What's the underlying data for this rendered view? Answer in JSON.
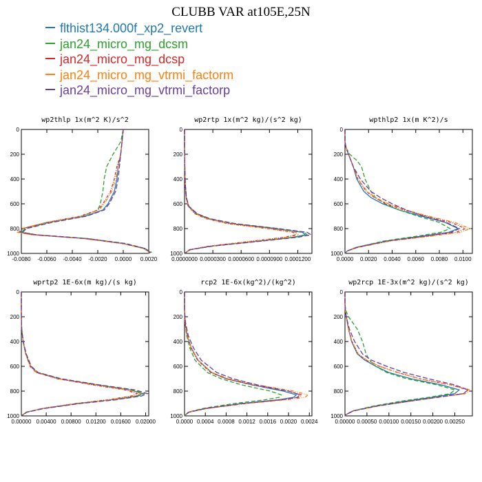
{
  "title": "CLUBB VAR at105E,25N",
  "legend": [
    {
      "label": "flthist134.000f_xp2_revert",
      "color": "#1f77b4"
    },
    {
      "label": "jan24_micro_mg_dcsm",
      "color": "#2ca02c"
    },
    {
      "label": "jan24_micro_mg_dcsp",
      "color": "#d62728"
    },
    {
      "label": "jan24_micro_mg_vtrmi_factorm",
      "color": "#ff7f0e"
    },
    {
      "label": "jan24_micro_mg_vtrmi_factorp",
      "color": "#6a3d9a"
    }
  ],
  "chart_data": [
    {
      "type": "line",
      "title": "wp2thlp  1x(m^2 K)/s^2",
      "y_ticks": [
        "0",
        "200",
        "400",
        "600",
        "800",
        "1000"
      ],
      "ylim": [
        1000,
        0
      ],
      "xlim": [
        -0.008,
        0.002
      ],
      "x_ticks": [
        "-0.0080",
        "-0.0060",
        "-0.0040",
        "-0.0020",
        "0.0000",
        "0.0020"
      ],
      "y": [
        0,
        100,
        200,
        300,
        400,
        500,
        600,
        650,
        700,
        750,
        800,
        830,
        850,
        880,
        920,
        960,
        990,
        1000
      ],
      "series": [
        {
          "values": [
            0,
            -0.0001,
            -0.0002,
            -0.0004,
            -0.0005,
            -0.0007,
            -0.0012,
            -0.0016,
            -0.003,
            -0.006,
            -0.0079,
            -0.0081,
            -0.007,
            -0.003,
            0.0,
            0.0016,
            0.0021,
            0.0019
          ]
        },
        {
          "values": [
            0,
            -0.0002,
            -0.0008,
            -0.0013,
            -0.0015,
            -0.0016,
            -0.0018,
            -0.002,
            -0.0032,
            -0.0058,
            -0.0077,
            -0.008,
            -0.0068,
            -0.0028,
            0.0002,
            0.0017,
            0.0022,
            0.002
          ]
        },
        {
          "values": [
            0,
            -0.0001,
            -0.0002,
            -0.0005,
            -0.0007,
            -0.001,
            -0.0016,
            -0.002,
            -0.0034,
            -0.006,
            -0.0079,
            -0.0082,
            -0.0071,
            -0.0031,
            -0.0001,
            0.0016,
            0.0021,
            0.0019
          ]
        },
        {
          "values": [
            0,
            -0.0001,
            -0.0002,
            -0.0004,
            -0.0006,
            -0.0009,
            -0.0015,
            -0.0019,
            -0.0033,
            -0.006,
            -0.008,
            -0.0083,
            -0.0072,
            -0.0032,
            -0.0001,
            0.0016,
            0.0021,
            0.0019
          ]
        },
        {
          "values": [
            0,
            -0.0001,
            -0.0002,
            -0.0003,
            -0.0004,
            -0.0006,
            -0.0011,
            -0.0015,
            -0.0029,
            -0.0056,
            -0.0076,
            -0.0079,
            -0.0068,
            -0.0029,
            0.0001,
            0.0017,
            0.0021,
            0.0019
          ]
        }
      ]
    },
    {
      "type": "line",
      "title": "wp2rtp  1x(m^2 kg)/(s^2 kg)",
      "y_ticks": [
        "0",
        "200",
        "400",
        "600",
        "800",
        "1000"
      ],
      "ylim": [
        1000,
        0
      ],
      "xlim": [
        0,
        0.000135
      ],
      "x_ticks": [
        "0.0000000",
        "0.0000300",
        "0.0000600",
        "0.0000900",
        "0.0001200"
      ],
      "x_tick_values": [
        0,
        3e-05,
        6e-05,
        9e-05,
        0.00012
      ],
      "y": [
        0,
        150,
        300,
        450,
        550,
        620,
        680,
        720,
        760,
        800,
        830,
        850,
        870,
        900,
        940,
        970,
        1000
      ],
      "series": [
        {
          "values": [
            0,
            0,
            3e-07,
            8e-07,
            1.8e-06,
            4e-06,
            1.2e-05,
            2.5e-05,
            5e-05,
            9.5e-05,
            0.000125,
            0.000128,
            0.000115,
            8e-05,
            3e-05,
            6e-06,
            0
          ]
        },
        {
          "values": [
            0,
            0,
            3e-07,
            9e-07,
            2e-06,
            4.5e-06,
            1.3e-05,
            2.6e-05,
            5.2e-05,
            9.8e-05,
            0.000127,
            0.00013,
            0.000117,
            8.1e-05,
            3e-05,
            6e-06,
            0
          ]
        },
        {
          "values": [
            0,
            0,
            2e-07,
            7e-07,
            1.6e-06,
            3.8e-06,
            1.1e-05,
            2.3e-05,
            4.6e-05,
            8.8e-05,
            0.000115,
            0.000118,
            0.000106,
            7.3e-05,
            2.7e-05,
            5e-06,
            0
          ]
        },
        {
          "values": [
            0,
            0,
            2e-07,
            7e-07,
            1.7e-06,
            3.9e-06,
            1.15e-05,
            2.4e-05,
            4.8e-05,
            9e-05,
            0.000118,
            0.000121,
            0.000109,
            7.5e-05,
            2.8e-05,
            5e-06,
            0
          ]
        },
        {
          "values": [
            0,
            0,
            3e-07,
            9e-07,
            2e-06,
            4.6e-06,
            1.35e-05,
            2.7e-05,
            5.4e-05,
            0.0001,
            0.00013,
            0.000134,
            0.00012,
            8.3e-05,
            3.1e-05,
            6e-06,
            0
          ]
        }
      ]
    },
    {
      "type": "line",
      "title": "wpthlp2  1x(m K^2)/s",
      "y_ticks": [
        "0",
        "200",
        "400",
        "600",
        "800",
        "1000"
      ],
      "ylim": [
        1000,
        0
      ],
      "xlim": [
        0,
        0.0108
      ],
      "x_ticks": [
        "0.0000",
        "0.0020",
        "0.0040",
        "0.0060",
        "0.0080",
        "0.0100"
      ],
      "y": [
        0,
        100,
        150,
        200,
        250,
        300,
        400,
        500,
        550,
        600,
        650,
        700,
        750,
        800,
        830,
        860,
        900,
        950,
        980,
        1000
      ],
      "series": [
        {
          "values": [
            0,
            0,
            0.0001,
            0.0003,
            0.0005,
            0.0007,
            0.001,
            0.0016,
            0.0022,
            0.0032,
            0.0046,
            0.0065,
            0.0085,
            0.0096,
            0.0088,
            0.0066,
            0.0035,
            0.001,
            0.0002,
            0
          ]
        },
        {
          "values": [
            0,
            0,
            0.0001,
            0.0004,
            0.001,
            0.0014,
            0.0017,
            0.0022,
            0.0026,
            0.0034,
            0.0046,
            0.0062,
            0.008,
            0.0089,
            0.0081,
            0.0062,
            0.0033,
            0.001,
            0.0002,
            0
          ]
        },
        {
          "values": [
            0,
            0,
            0.0001,
            0.0003,
            0.0005,
            0.0007,
            0.0011,
            0.0018,
            0.0025,
            0.0035,
            0.005,
            0.0069,
            0.009,
            0.0102,
            0.0094,
            0.0071,
            0.0037,
            0.0011,
            0.0002,
            0
          ]
        },
        {
          "values": [
            0,
            0,
            0.0001,
            0.0003,
            0.0005,
            0.0007,
            0.0011,
            0.0019,
            0.0026,
            0.0037,
            0.0052,
            0.0071,
            0.0093,
            0.0106,
            0.0098,
            0.0074,
            0.0039,
            0.0012,
            0.0002,
            0
          ]
        },
        {
          "values": [
            0,
            0,
            0.0001,
            0.0003,
            0.0005,
            0.0007,
            0.0013,
            0.0022,
            0.003,
            0.004,
            0.0052,
            0.0067,
            0.0086,
            0.0097,
            0.009,
            0.0068,
            0.0036,
            0.0011,
            0.0002,
            0
          ]
        }
      ]
    },
    {
      "type": "line",
      "title": "wprtp2  1E-6x(m kg)/(s kg)",
      "y_ticks": [
        "0",
        "200",
        "400",
        "600",
        "800",
        "1000"
      ],
      "ylim": [
        1000,
        0
      ],
      "xlim": [
        0,
        0.0205
      ],
      "x_ticks": [
        "0.00000",
        "0.00400",
        "0.00800",
        "0.01200",
        "0.01600",
        "0.02000"
      ],
      "y": [
        0,
        200,
        300,
        400,
        500,
        600,
        650,
        700,
        750,
        790,
        820,
        840,
        870,
        900,
        940,
        970,
        1000
      ],
      "series": [
        {
          "values": [
            0,
            0,
            5e-05,
            0.0003,
            0.0007,
            0.0015,
            0.0025,
            0.006,
            0.012,
            0.0175,
            0.0195,
            0.0185,
            0.0145,
            0.009,
            0.0035,
            0.0008,
            0
          ]
        },
        {
          "values": [
            0,
            0,
            5e-05,
            0.0003,
            0.0007,
            0.0015,
            0.0026,
            0.0062,
            0.0123,
            0.0178,
            0.0198,
            0.0188,
            0.0148,
            0.0092,
            0.0036,
            0.0008,
            0
          ]
        },
        {
          "values": [
            0,
            0,
            5e-05,
            0.0003,
            0.0007,
            0.0014,
            0.0024,
            0.0058,
            0.0115,
            0.0167,
            0.0186,
            0.0177,
            0.0139,
            0.0087,
            0.0034,
            0.0008,
            0
          ]
        },
        {
          "values": [
            0,
            0,
            5e-05,
            0.0003,
            0.0007,
            0.0015,
            0.0025,
            0.006,
            0.0118,
            0.0172,
            0.0192,
            0.0182,
            0.0143,
            0.0089,
            0.0035,
            0.0008,
            0
          ]
        },
        {
          "values": [
            0,
            0,
            5e-05,
            0.0003,
            0.0008,
            0.0016,
            0.0027,
            0.0064,
            0.0126,
            0.0183,
            0.0203,
            0.0193,
            0.0152,
            0.0095,
            0.0037,
            0.0009,
            0
          ]
        }
      ]
    },
    {
      "type": "line",
      "title": "rcp2  1E-6x(kg^2)/(kg^2)",
      "y_ticks": [
        "0",
        "200",
        "400",
        "600",
        "800",
        "1000"
      ],
      "ylim": [
        1000,
        0
      ],
      "xlim": [
        0,
        0.00245
      ],
      "x_ticks": [
        "0.0000",
        "0.0004",
        "0.0008",
        "0.0012",
        "0.0016",
        "0.0020",
        "0.0024"
      ],
      "y": [
        0,
        150,
        250,
        350,
        450,
        550,
        650,
        700,
        750,
        800,
        830,
        850,
        870,
        900,
        940,
        970,
        1000
      ],
      "series": [
        {
          "values": [
            0,
            0,
            1e-05,
            5e-05,
            0.00013,
            0.00026,
            0.00052,
            0.0008,
            0.0013,
            0.0019,
            0.00215,
            0.0021,
            0.0018,
            0.0011,
            0.0004,
            8e-05,
            0
          ]
        },
        {
          "values": [
            0,
            0,
            1e-05,
            4e-05,
            0.0001,
            0.0002,
            0.00044,
            0.0007,
            0.0011,
            0.00165,
            0.00186,
            0.00182,
            0.00155,
            0.00095,
            0.00035,
            7e-05,
            0
          ]
        },
        {
          "values": [
            0,
            0,
            1e-05,
            5e-05,
            0.00012,
            0.00025,
            0.0005,
            0.0008,
            0.0013,
            0.002,
            0.00225,
            0.0022,
            0.00188,
            0.00115,
            0.00042,
            8e-05,
            0
          ]
        },
        {
          "values": [
            0,
            0,
            1e-05,
            5e-05,
            0.00013,
            0.00026,
            0.00053,
            0.00085,
            0.0014,
            0.0021,
            0.00237,
            0.00232,
            0.00197,
            0.0012,
            0.00044,
            9e-05,
            0
          ]
        },
        {
          "values": [
            0,
            0,
            2e-05,
            7e-05,
            0.00017,
            0.00032,
            0.00062,
            0.00093,
            0.0014,
            0.002,
            0.00222,
            0.00217,
            0.00185,
            0.00113,
            0.00041,
            8e-05,
            0
          ]
        }
      ]
    },
    {
      "type": "line",
      "title": "wp2rcp  1E-3x(m^2 kg)/(s^2 kg)",
      "y_ticks": [
        "0",
        "200",
        "400",
        "600",
        "800",
        "1000"
      ],
      "ylim": [
        1000,
        0
      ],
      "xlim": [
        0,
        0.0029
      ],
      "x_ticks": [
        "0.00000",
        "0.00050",
        "0.00100",
        "0.00150",
        "0.00200",
        "0.00250"
      ],
      "y": [
        0,
        100,
        150,
        200,
        300,
        400,
        500,
        550,
        600,
        650,
        700,
        750,
        790,
        820,
        850,
        880,
        920,
        960,
        990,
        1000
      ],
      "series": [
        {
          "values": [
            0,
            0,
            1e-05,
            3e-05,
            8e-05,
            0.00015,
            0.00028,
            0.00045,
            0.0007,
            0.001,
            0.0015,
            0.0022,
            0.0026,
            0.0025,
            0.002,
            0.0014,
            0.0007,
            0.00018,
            2e-05,
            0
          ]
        },
        {
          "values": [
            0,
            0,
            2e-05,
            8e-05,
            0.00028,
            0.0004,
            0.00048,
            0.00056,
            0.0007,
            0.00095,
            0.0014,
            0.0021,
            0.0025,
            0.0024,
            0.0019,
            0.0013,
            0.00065,
            0.00017,
            2e-05,
            0
          ]
        },
        {
          "values": [
            0,
            0,
            1e-05,
            3e-05,
            8e-05,
            0.00016,
            0.0003,
            0.00048,
            0.00078,
            0.0012,
            0.0017,
            0.0024,
            0.0028,
            0.0027,
            0.0021,
            0.0015,
            0.00075,
            0.00019,
            2e-05,
            0
          ]
        },
        {
          "values": [
            0,
            0,
            1e-05,
            3e-05,
            8e-05,
            0.00016,
            0.0003,
            0.0005,
            0.0008,
            0.0012,
            0.0017,
            0.0024,
            0.00285,
            0.00275,
            0.00215,
            0.0015,
            0.00076,
            0.00019,
            2e-05,
            0
          ]
        },
        {
          "values": [
            0,
            0,
            1e-05,
            3e-05,
            0.0001,
            0.00022,
            0.0004,
            0.0006,
            0.00095,
            0.00135,
            0.0019,
            0.0025,
            0.0028,
            0.0027,
            0.0021,
            0.0015,
            0.00074,
            0.00019,
            2e-05,
            0
          ]
        }
      ]
    }
  ]
}
